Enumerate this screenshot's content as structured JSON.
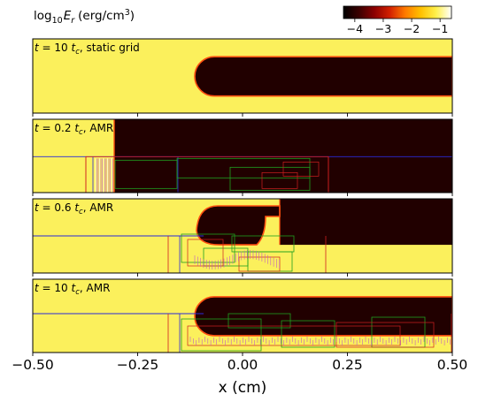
{
  "figure": {
    "colorbar_label": "log10Er (erg/cm3)",
    "colorbar_label_parts": {
      "base": "log",
      "base_sub": "10",
      "var": "E",
      "var_sub": "r",
      "units": "(erg/cm",
      "units_sup": "3",
      "units_close": ")"
    },
    "colorbar_ticks": [
      "−4",
      "−3",
      "−2",
      "−1"
    ],
    "colorbar_range": [
      -4.4,
      -0.6
    ],
    "colormap": [
      "#000000",
      "#3a0000",
      "#8b0000",
      "#d22000",
      "#ff7a00",
      "#ffc000",
      "#fff04c",
      "#ffffff"
    ],
    "field_colors": {
      "high": "#fbf05c",
      "low": "#210000",
      "edge": "#ff5010"
    },
    "grid_colors": {
      "level0": "#2a2ad8",
      "level1": "#d02020",
      "level2": "#20a020",
      "level3": "#c060c0"
    }
  },
  "chart_data": {
    "type": "heatmap",
    "panels": [
      {
        "label_prefix": "t = 10",
        "label_suffix": ", static grid",
        "t_over_tc": 10,
        "grid": "static"
      },
      {
        "label_prefix": "t = 0.2",
        "label_suffix": ", AMR",
        "t_over_tc": 0.2,
        "grid": "AMR"
      },
      {
        "label_prefix": "t = 0.6",
        "label_suffix": ", AMR",
        "t_over_tc": 0.6,
        "grid": "AMR"
      },
      {
        "label_prefix": "t = 10",
        "label_suffix": ", AMR",
        "t_over_tc": 10,
        "grid": "AMR"
      }
    ],
    "label_tc": "t",
    "label_tc_sub": "c",
    "xlabel": "x (cm)",
    "xlim": [
      -0.5,
      0.5
    ],
    "xticks": [
      -0.5,
      -0.25,
      0.0,
      0.25,
      0.5
    ],
    "xtick_labels": [
      "−0.50",
      "−0.25",
      "0.00",
      "0.25",
      "0.50"
    ]
  }
}
